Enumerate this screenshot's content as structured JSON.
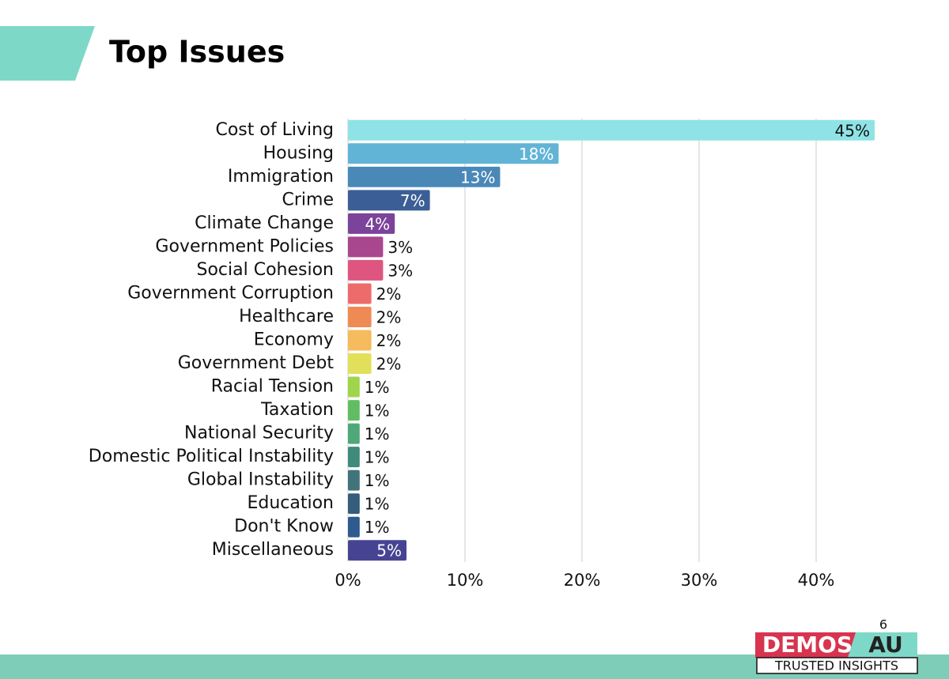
{
  "chart_data": {
    "type": "bar",
    "orientation": "horizontal",
    "title": "Top Issues",
    "categories": [
      "Cost of Living",
      "Housing",
      "Immigration",
      "Crime",
      "Climate Change",
      "Government Policies",
      "Social Cohesion",
      "Government Corruption",
      "Healthcare",
      "Economy",
      "Government Debt",
      "Racial Tension",
      "Taxation",
      "National Security",
      "Domestic Political Instability",
      "Global Instability",
      "Education",
      "Don't Know",
      "Miscellaneous"
    ],
    "values": [
      45,
      18,
      13,
      7,
      4,
      3,
      3,
      2,
      2,
      2,
      2,
      1,
      1,
      1,
      1,
      1,
      1,
      1,
      5
    ],
    "value_labels": [
      "45%",
      "18%",
      "13%",
      "7%",
      "4%",
      "3%",
      "3%",
      "2%",
      "2%",
      "2%",
      "2%",
      "1%",
      "1%",
      "1%",
      "1%",
      "1%",
      "1%",
      "1%",
      "5%"
    ],
    "colors": [
      "#8fe3e6",
      "#62b4d6",
      "#4a88b8",
      "#3b5e96",
      "#7b4399",
      "#a8468e",
      "#de5580",
      "#ee6b6b",
      "#f08a55",
      "#f5bb5c",
      "#e2e05a",
      "#9ed54a",
      "#62bd62",
      "#4fa87a",
      "#3f8a7a",
      "#40737a",
      "#335d7a",
      "#2e5a8f",
      "#464492"
    ],
    "xlim": [
      0,
      45
    ],
    "xticks": [
      {
        "value": 0,
        "label": "0%"
      },
      {
        "value": 10,
        "label": "10%"
      },
      {
        "value": 20,
        "label": "20%"
      },
      {
        "value": 30,
        "label": "30%"
      },
      {
        "value": 40,
        "label": "40%"
      }
    ],
    "grid": true
  },
  "page_number": "6",
  "logo": {
    "name": "DEMOS",
    "suffix": "AU",
    "tagline": "TRUSTED INSIGHTS"
  }
}
